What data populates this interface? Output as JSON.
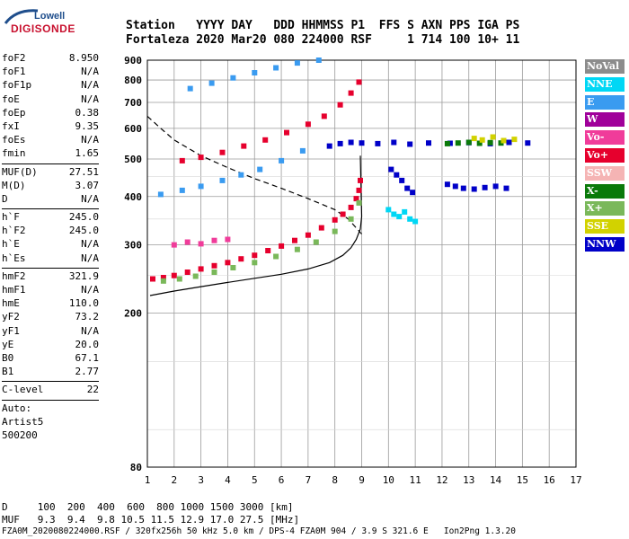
{
  "logo": {
    "line1": "Lowell",
    "line2": "DIGISONDE"
  },
  "header": {
    "line1": "Station   YYYY DAY   DDD HHMMSS P1  FFS S AXN PPS IGA PS",
    "line2": "Fortaleza 2020 Mar20 080 224000 RSF     1 714 100 10+ 11"
  },
  "params": [
    {
      "k": "foF2",
      "v": "8.950"
    },
    {
      "k": "foF1",
      "v": "N/A"
    },
    {
      "k": "foF1p",
      "v": "N/A"
    },
    {
      "k": "foE",
      "v": "N/A"
    },
    {
      "k": "foEp",
      "v": "0.38"
    },
    {
      "k": "fxI",
      "v": "9.35"
    },
    {
      "k": "foEs",
      "v": "N/A"
    },
    {
      "k": "fmin",
      "v": "1.65"
    },
    {
      "sep": true
    },
    {
      "k": "MUF(D)",
      "v": "27.51"
    },
    {
      "k": "M(D)",
      "v": "3.07"
    },
    {
      "k": "D",
      "v": "N/A"
    },
    {
      "sep": true
    },
    {
      "k": "h`F",
      "v": "245.0"
    },
    {
      "k": "h`F2",
      "v": "245.0"
    },
    {
      "k": "h`E",
      "v": "N/A"
    },
    {
      "k": "h`Es",
      "v": "N/A"
    },
    {
      "sep": true
    },
    {
      "k": "hmF2",
      "v": "321.9"
    },
    {
      "k": "hmF1",
      "v": "N/A"
    },
    {
      "k": "hmE",
      "v": "110.0"
    },
    {
      "k": "yF2",
      "v": "73.2"
    },
    {
      "k": "yF1",
      "v": "N/A"
    },
    {
      "k": "yE",
      "v": "20.0"
    },
    {
      "k": "B0",
      "v": "67.1"
    },
    {
      "k": "B1",
      "v": "2.77"
    },
    {
      "sep": true
    },
    {
      "k": "C-level",
      "v": "22"
    },
    {
      "sep": true
    },
    {
      "text": "Auto:"
    },
    {
      "text": "Artist5"
    },
    {
      "text": "500200"
    }
  ],
  "legend": [
    {
      "label": "NoVal",
      "color": "#8c8c8c"
    },
    {
      "label": "NNE",
      "color": "#00d7f5"
    },
    {
      "label": "E",
      "color": "#3a9bf0"
    },
    {
      "label": "W",
      "color": "#a0009a"
    },
    {
      "label": "Vo-",
      "color": "#f03c9a"
    },
    {
      "label": "Vo+",
      "color": "#e6002d"
    },
    {
      "label": "SSW",
      "color": "#f5b4b4"
    },
    {
      "label": "X-",
      "color": "#0a7a0a"
    },
    {
      "label": "X+",
      "color": "#7ab85a"
    },
    {
      "label": "SSE",
      "color": "#d2d200"
    },
    {
      "label": "NNW",
      "color": "#0000c8"
    }
  ],
  "footer": {
    "line1": "D     100  200  400  600  800 1000 1500 3000 [km]",
    "line2": "MUF   9.3  9.4  9.8 10.5 11.5 12.9 17.0 27.5 [MHz]",
    "line3": "FZA0M_2020080224000.RSF / 320fx256h 50 kHz 5.0 km / DPS-4 FZA0M 904 / 3.9 S 321.6 E   Ion2Png 1.3.20"
  },
  "chart_data": {
    "type": "scatter",
    "xlabel": "",
    "ylabel": "",
    "xlim": [
      1,
      17
    ],
    "ylim": [
      80,
      900
    ],
    "y_log": true,
    "xticks": [
      1,
      2,
      3,
      4,
      5,
      6,
      7,
      8,
      9,
      10,
      11,
      12,
      13,
      14,
      15,
      16,
      17
    ],
    "yticks": [
      80,
      200,
      300,
      400,
      500,
      600,
      700,
      800,
      900
    ],
    "grid": true,
    "series": [
      {
        "name": "Vo+",
        "x": [
          1.2,
          1.6,
          2.0,
          2.5,
          3.0,
          3.5,
          4.0,
          4.5,
          5.0,
          5.5,
          6.0,
          6.5,
          7.0,
          7.5,
          8.0,
          8.3,
          8.6,
          8.8,
          8.9,
          8.95
        ],
        "y": [
          245,
          247,
          250,
          255,
          260,
          265,
          270,
          276,
          282,
          290,
          298,
          308,
          318,
          332,
          348,
          360,
          375,
          395,
          415,
          440
        ]
      },
      {
        "name": "X+",
        "x": [
          1.6,
          2.2,
          2.8,
          3.5,
          4.2,
          5.0,
          5.8,
          6.6,
          7.3,
          8.0,
          8.6,
          8.9
        ],
        "y": [
          242,
          245,
          249,
          255,
          262,
          270,
          280,
          292,
          305,
          325,
          350,
          385
        ]
      },
      {
        "name": "Vo+ (2nd hop)",
        "x": [
          2.3,
          3.0,
          3.8,
          4.6,
          5.4,
          6.2,
          7.0,
          7.6,
          8.2,
          8.6,
          8.9
        ],
        "y": [
          495,
          505,
          520,
          540,
          560,
          585,
          615,
          645,
          690,
          740,
          790
        ]
      },
      {
        "name": "E",
        "x": [
          2.6,
          3.4,
          4.2,
          5.0,
          5.8,
          6.6,
          7.4
        ],
        "y": [
          760,
          785,
          810,
          835,
          860,
          885,
          900
        ]
      },
      {
        "name": "E",
        "x": [
          1.5,
          2.3,
          3.0,
          3.8,
          4.5,
          5.2,
          6.0,
          6.8
        ],
        "y": [
          405,
          415,
          425,
          440,
          455,
          470,
          495,
          525
        ]
      },
      {
        "name": "NNW",
        "x": [
          7.8,
          8.2,
          8.6,
          9.0,
          9.6,
          10.2,
          10.8,
          11.5,
          12.3,
          13.0,
          13.8,
          14.5,
          15.2
        ],
        "y": [
          540,
          548,
          552,
          550,
          548,
          552,
          546,
          550,
          549,
          551,
          548,
          552,
          550
        ]
      },
      {
        "name": "NNW",
        "x": [
          10.1,
          10.3,
          10.5,
          10.7,
          10.9,
          12.2,
          12.5,
          12.8,
          13.2,
          13.6,
          14.0,
          14.4
        ],
        "y": [
          470,
          455,
          440,
          420,
          410,
          430,
          425,
          420,
          418,
          422,
          425,
          420
        ]
      },
      {
        "name": "X-",
        "x": [
          12.2,
          12.6,
          13.0,
          13.4,
          13.8,
          14.2
        ],
        "y": [
          548,
          550,
          552,
          549,
          551,
          550
        ]
      },
      {
        "name": "SSE",
        "x": [
          13.2,
          13.5,
          13.9,
          14.3,
          14.7
        ],
        "y": [
          565,
          560,
          570,
          558,
          562
        ]
      },
      {
        "name": "Vo-",
        "x": [
          2.0,
          2.5,
          3.0,
          3.5,
          4.0
        ],
        "y": [
          300,
          305,
          302,
          308,
          310
        ]
      },
      {
        "name": "NNE",
        "x": [
          10.0,
          10.2,
          10.4,
          10.6,
          10.8,
          11.0
        ],
        "y": [
          370,
          360,
          355,
          365,
          350,
          345
        ]
      }
    ],
    "curves": [
      {
        "name": "profile",
        "style": "solid",
        "x": [
          1.1,
          2.0,
          3.0,
          4.0,
          5.0,
          6.0,
          7.0,
          7.8,
          8.3,
          8.6,
          8.8,
          8.95,
          9.0,
          8.95
        ],
        "y": [
          222,
          228,
          234,
          240,
          246,
          252,
          260,
          270,
          282,
          295,
          310,
          330,
          355,
          510
        ]
      },
      {
        "name": "MUF",
        "style": "dashed",
        "x": [
          1.0,
          1.5,
          2.0,
          3.0,
          4.0,
          5.0,
          6.0,
          7.0,
          8.0,
          8.5,
          9.0
        ],
        "y": [
          645,
          600,
          560,
          510,
          475,
          445,
          420,
          395,
          370,
          350,
          320
        ]
      }
    ]
  }
}
